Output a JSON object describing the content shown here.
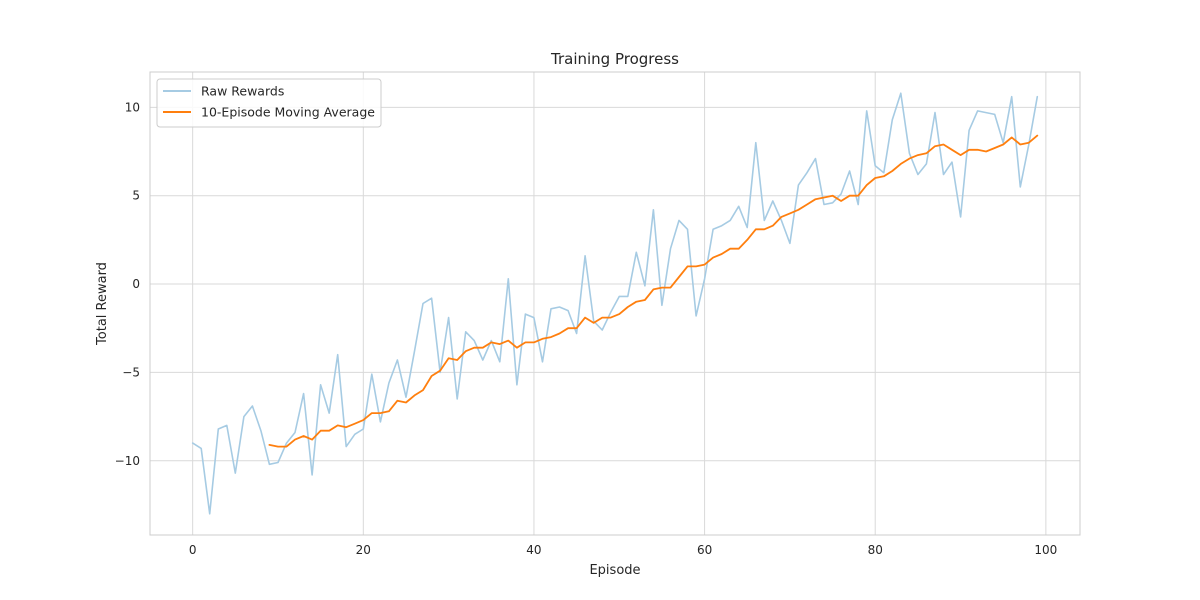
{
  "chart_data": {
    "type": "line",
    "title": "Training Progress",
    "xlabel": "Episode",
    "ylabel": "Total Reward",
    "xlim": [
      -5,
      104
    ],
    "ylim": [
      -14.2,
      12
    ],
    "xticks": [
      0,
      20,
      40,
      60,
      80,
      100
    ],
    "yticks": [
      -10,
      -5,
      0,
      5,
      10
    ],
    "grid": true,
    "legend_position": "top-left",
    "series": [
      {
        "name": "Raw Rewards",
        "color": "#a6cbe3",
        "x": [
          0,
          1,
          2,
          3,
          4,
          5,
          6,
          7,
          8,
          9,
          10,
          11,
          12,
          13,
          14,
          15,
          16,
          17,
          18,
          19,
          20,
          21,
          22,
          23,
          24,
          25,
          26,
          27,
          28,
          29,
          30,
          31,
          32,
          33,
          34,
          35,
          36,
          37,
          38,
          39,
          40,
          41,
          42,
          43,
          44,
          45,
          46,
          47,
          48,
          49,
          50,
          51,
          52,
          53,
          54,
          55,
          56,
          57,
          58,
          59,
          60,
          61,
          62,
          63,
          64,
          65,
          66,
          67,
          68,
          69,
          70,
          71,
          72,
          73,
          74,
          75,
          76,
          77,
          78,
          79,
          80,
          81,
          82,
          83,
          84,
          85,
          86,
          87,
          88,
          89,
          90,
          91,
          92,
          93,
          94,
          95,
          96,
          97,
          98,
          99
        ],
        "values": [
          -9.0,
          -9.3,
          -13.0,
          -8.2,
          -8.0,
          -10.7,
          -7.5,
          -6.9,
          -8.3,
          -10.2,
          -10.1,
          -9.0,
          -8.4,
          -6.2,
          -10.8,
          -5.7,
          -7.3,
          -4.0,
          -9.2,
          -8.5,
          -8.2,
          -5.1,
          -7.8,
          -5.6,
          -4.3,
          -6.4,
          -3.8,
          -1.1,
          -0.8,
          -5.0,
          -1.9,
          -6.5,
          -2.7,
          -3.2,
          -4.3,
          -3.2,
          -4.4,
          0.3,
          -5.7,
          -1.7,
          -1.9,
          -4.4,
          -1.4,
          -1.3,
          -1.5,
          -2.8,
          1.6,
          -2.1,
          -2.6,
          -1.6,
          -0.7,
          -0.7,
          1.8,
          -0.1,
          4.2,
          -1.2,
          2.0,
          3.6,
          3.1,
          -1.8,
          0.3,
          3.1,
          3.3,
          3.6,
          4.4,
          3.2,
          8.0,
          3.6,
          4.7,
          3.6,
          2.3,
          5.6,
          6.3,
          7.1,
          4.5,
          4.6,
          5.1,
          6.4,
          4.5,
          9.8,
          6.7,
          6.3,
          9.3,
          10.8,
          7.4,
          6.2,
          6.8,
          9.7,
          6.2,
          6.9,
          3.8,
          8.7,
          9.8,
          9.7,
          9.6,
          8.0,
          10.6,
          5.5,
          7.9,
          10.6
        ]
      },
      {
        "name": "10-Episode Moving Average",
        "color": "#ff7f0e",
        "x": [
          9,
          10,
          11,
          12,
          13,
          14,
          15,
          16,
          17,
          18,
          19,
          20,
          21,
          22,
          23,
          24,
          25,
          26,
          27,
          28,
          29,
          30,
          31,
          32,
          33,
          34,
          35,
          36,
          37,
          38,
          39,
          40,
          41,
          42,
          43,
          44,
          45,
          46,
          47,
          48,
          49,
          50,
          51,
          52,
          53,
          54,
          55,
          56,
          57,
          58,
          59,
          60,
          61,
          62,
          63,
          64,
          65,
          66,
          67,
          68,
          69,
          70,
          71,
          72,
          73,
          74,
          75,
          76,
          77,
          78,
          79,
          80,
          81,
          82,
          83,
          84,
          85,
          86,
          87,
          88,
          89,
          90,
          91,
          92,
          93,
          94,
          95,
          96,
          97,
          98,
          99
        ],
        "values": [
          -9.1,
          -9.2,
          -9.2,
          -8.8,
          -8.6,
          -8.8,
          -8.3,
          -8.3,
          -8.0,
          -8.1,
          -7.9,
          -7.7,
          -7.3,
          -7.3,
          -7.2,
          -6.6,
          -6.7,
          -6.3,
          -6.0,
          -5.2,
          -4.9,
          -4.2,
          -4.3,
          -3.8,
          -3.6,
          -3.6,
          -3.3,
          -3.4,
          -3.2,
          -3.6,
          -3.3,
          -3.3,
          -3.1,
          -3.0,
          -2.8,
          -2.5,
          -2.5,
          -1.9,
          -2.2,
          -1.9,
          -1.9,
          -1.7,
          -1.3,
          -1.0,
          -0.9,
          -0.3,
          -0.2,
          -0.2,
          0.4,
          1.0,
          1.0,
          1.1,
          1.5,
          1.7,
          2.0,
          2.0,
          2.5,
          3.1,
          3.1,
          3.3,
          3.8,
          4.0,
          4.2,
          4.5,
          4.8,
          4.9,
          5.0,
          4.7,
          5.0,
          5.0,
          5.6,
          6.0,
          6.1,
          6.4,
          6.8,
          7.1,
          7.3,
          7.4,
          7.8,
          7.9,
          7.6,
          7.3,
          7.6,
          7.6,
          7.5,
          7.7,
          7.9,
          8.3,
          7.9,
          8.0,
          8.4
        ]
      }
    ]
  }
}
